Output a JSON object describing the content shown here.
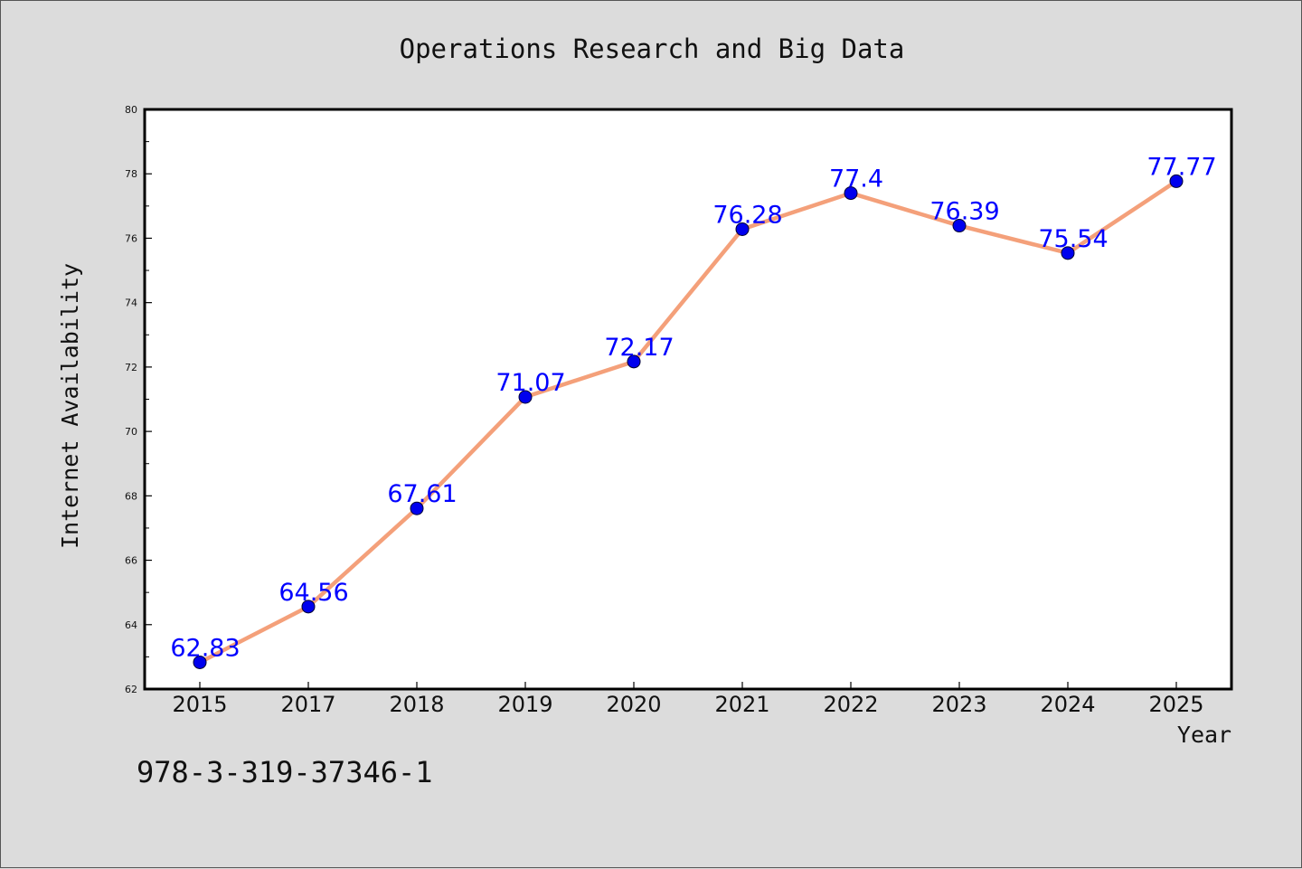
{
  "chart_data": {
    "type": "line",
    "title": "Operations Research and Big Data",
    "xlabel": "Year",
    "ylabel": "Internet Availability",
    "categories": [
      "2015",
      "2017",
      "2018",
      "2019",
      "2020",
      "2021",
      "2022",
      "2023",
      "2024",
      "2025"
    ],
    "series": [
      {
        "values": [
          62.83,
          64.56,
          67.61,
          71.07,
          72.17,
          76.28,
          77.4,
          76.39,
          75.54,
          77.77
        ],
        "data_labels": [
          "62.83",
          "64.56",
          "67.61",
          "71.07",
          "72.17",
          "76.28",
          "77.4",
          "76.39",
          "75.54",
          "77.77"
        ],
        "line_color": "#f4a07a",
        "marker_color": "#0000ee"
      }
    ],
    "ylim": [
      62,
      80
    ],
    "yticks": [
      "62",
      "64",
      "66",
      "68",
      "70",
      "72",
      "74",
      "76",
      "78",
      "80"
    ],
    "grid": false,
    "legend": "none"
  },
  "annotation": "978-3-319-37346-1",
  "colors": {
    "background": "#dcdcdc",
    "plot_background": "#ffffff",
    "label_color": "#0000ff"
  }
}
